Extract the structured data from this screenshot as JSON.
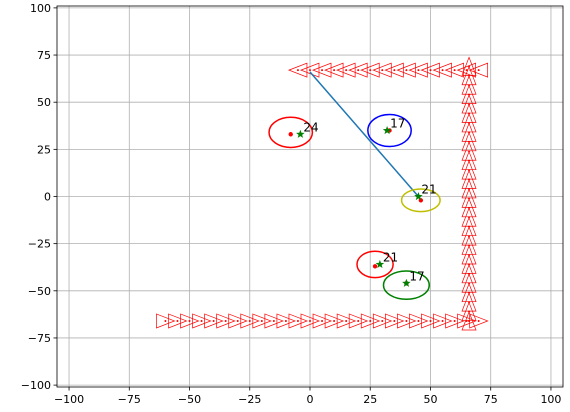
{
  "chart_data": {
    "type": "scatter",
    "title": "",
    "xlabel": "",
    "ylabel": "",
    "xlim": [
      -105,
      105
    ],
    "ylim": [
      -101,
      101
    ],
    "grid": true,
    "xticks": [
      -100,
      -75,
      -50,
      -25,
      0,
      25,
      50,
      75,
      100
    ],
    "yticks": [
      -100,
      -75,
      -50,
      -25,
      0,
      25,
      50,
      75,
      100
    ],
    "xtick_labels": [
      "−100",
      "−75",
      "−50",
      "−25",
      "0",
      "25",
      "50",
      "75",
      "100"
    ],
    "ytick_labels": [
      "−100",
      "−75",
      "−50",
      "−25",
      "0",
      "25",
      "50",
      "75",
      "100"
    ],
    "colors": {
      "red": "#ff0000",
      "green": "#008000",
      "blue": "#0000ff",
      "yellow": "#bfbf00",
      "line": "#1f77b4"
    },
    "line": {
      "x": [
        0,
        45
      ],
      "y": [
        66,
        0
      ]
    },
    "triangle_paths": [
      {
        "name": "top-row",
        "direction": "left",
        "x_start": 70,
        "x_end": -9,
        "y": 67,
        "step": 5
      },
      {
        "name": "right-column",
        "direction": "up",
        "y_start": -66,
        "y_end": 70,
        "x": 66,
        "step": 5
      },
      {
        "name": "bottom-row",
        "direction": "right",
        "x_start": -60,
        "x_end": 72,
        "y": -66,
        "step": 5
      }
    ],
    "objects": [
      {
        "label": "24",
        "truth": [
          -8,
          33
        ],
        "estimate": [
          -4,
          33
        ],
        "ellipse": {
          "center": [
            -8,
            34
          ],
          "rx": 9,
          "ry": 8,
          "color": "red"
        }
      },
      {
        "label": "17",
        "truth": [
          33,
          35
        ],
        "estimate": [
          32,
          35
        ],
        "ellipse": {
          "center": [
            33,
            35
          ],
          "rx": 9,
          "ry": 8.5,
          "color": "blue"
        }
      },
      {
        "label": "21",
        "truth": [
          46,
          -2
        ],
        "estimate": [
          45,
          0
        ],
        "ellipse": {
          "center": [
            46,
            -2
          ],
          "rx": 8,
          "ry": 6,
          "color": "yellow"
        }
      },
      {
        "label": "21",
        "truth": [
          27,
          -37
        ],
        "estimate": [
          29,
          -36
        ],
        "ellipse": {
          "center": [
            27,
            -36
          ],
          "rx": 7.5,
          "ry": 7,
          "color": "red"
        }
      },
      {
        "label": "17",
        "truth": [
          40,
          -46
        ],
        "estimate": [
          40,
          -46
        ],
        "ellipse": {
          "center": [
            40,
            -47
          ],
          "rx": 9.5,
          "ry": 7.5,
          "color": "green"
        }
      }
    ]
  }
}
